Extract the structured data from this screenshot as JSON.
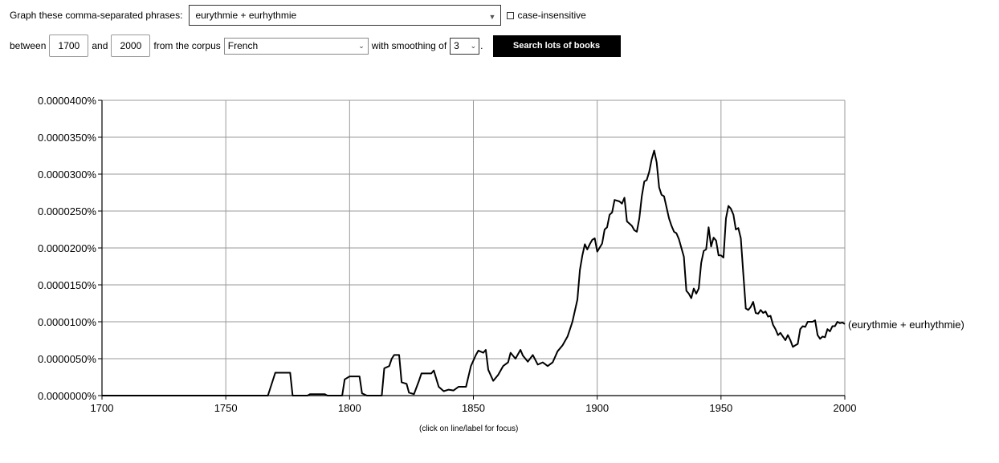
{
  "controls": {
    "phrases_label": "Graph these comma-separated phrases:",
    "phrases_value": "eurythmie + eurhythmie",
    "case_insensitive_label": "case-insensitive",
    "between_label": "between",
    "start_year": "1700",
    "and_label": "and",
    "end_year": "2000",
    "corpus_label": "from the corpus",
    "corpus_value": "French",
    "smoothing_label": "with smoothing of",
    "smoothing_value": "3",
    "period": ".",
    "search_button": "Search lots of books"
  },
  "hint": "(click on line/label for focus)",
  "chart_data": {
    "type": "line",
    "xlim": [
      1700,
      2000
    ],
    "ylim": [
      0,
      4e-05
    ],
    "x_ticks": [
      1700,
      1750,
      1800,
      1850,
      1900,
      1950,
      2000
    ],
    "y_ticks": [
      "0.0000000%",
      "0.0000050%",
      "0.0000100%",
      "0.0000150%",
      "0.0000200%",
      "0.0000250%",
      "0.0000300%",
      "0.0000350%",
      "0.0000400%"
    ],
    "grid": true,
    "line_color": "#000000",
    "series": [
      {
        "name": "(eurythmie + eurhythmie)",
        "points": [
          [
            1700,
            0
          ],
          [
            1767,
            0
          ],
          [
            1770,
            3.1e-06
          ],
          [
            1776,
            3.1e-06
          ],
          [
            1777,
            0
          ],
          [
            1783,
            0
          ],
          [
            1784,
            2e-07
          ],
          [
            1790,
            2e-07
          ],
          [
            1791,
            0
          ],
          [
            1797,
            0
          ],
          [
            1798,
            2.2e-06
          ],
          [
            1800,
            2.6e-06
          ],
          [
            1804,
            2.6e-06
          ],
          [
            1805,
            3e-07
          ],
          [
            1807,
            0
          ],
          [
            1813,
            0
          ],
          [
            1814,
            3.7e-06
          ],
          [
            1816,
            4e-06
          ],
          [
            1817,
            5e-06
          ],
          [
            1818,
            5.5e-06
          ],
          [
            1820,
            5.5e-06
          ],
          [
            1821,
            1.8e-06
          ],
          [
            1823,
            1.6e-06
          ],
          [
            1824,
            4e-07
          ],
          [
            1826,
            2e-07
          ],
          [
            1828,
            2e-06
          ],
          [
            1829,
            3e-06
          ],
          [
            1831,
            3e-06
          ],
          [
            1833,
            3e-06
          ],
          [
            1834,
            3.4e-06
          ],
          [
            1836,
            1.2e-06
          ],
          [
            1838,
            6e-07
          ],
          [
            1840,
            8e-07
          ],
          [
            1842,
            7e-07
          ],
          [
            1844,
            1.2e-06
          ],
          [
            1847,
            1.2e-06
          ],
          [
            1849,
            4e-06
          ],
          [
            1851,
            5.5e-06
          ],
          [
            1852,
            6.1e-06
          ],
          [
            1854,
            5.8e-06
          ],
          [
            1855,
            6.2e-06
          ],
          [
            1856,
            3.5e-06
          ],
          [
            1858,
            2e-06
          ],
          [
            1860,
            2.8e-06
          ],
          [
            1862,
            4e-06
          ],
          [
            1864,
            4.5e-06
          ],
          [
            1865,
            5.8e-06
          ],
          [
            1867,
            5e-06
          ],
          [
            1869,
            6.2e-06
          ],
          [
            1870,
            5.4e-06
          ],
          [
            1872,
            4.6e-06
          ],
          [
            1874,
            5.5e-06
          ],
          [
            1876,
            4.2e-06
          ],
          [
            1878,
            4.5e-06
          ],
          [
            1880,
            4e-06
          ],
          [
            1882,
            4.5e-06
          ],
          [
            1884,
            6e-06
          ],
          [
            1886,
            6.8e-06
          ],
          [
            1888,
            8e-06
          ],
          [
            1889,
            9e-06
          ],
          [
            1890,
            1e-05
          ],
          [
            1892,
            1.3e-05
          ],
          [
            1893,
            1.7e-05
          ],
          [
            1894,
            1.9e-05
          ],
          [
            1895,
            2.05e-05
          ],
          [
            1896,
            1.98e-05
          ],
          [
            1897,
            2.05e-05
          ],
          [
            1898,
            2.11e-05
          ],
          [
            1899,
            2.13e-05
          ],
          [
            1900,
            1.95e-05
          ],
          [
            1902,
            2.06e-05
          ],
          [
            1903,
            2.25e-05
          ],
          [
            1904,
            2.28e-05
          ],
          [
            1905,
            2.45e-05
          ],
          [
            1906,
            2.48e-05
          ],
          [
            1907,
            2.65e-05
          ],
          [
            1909,
            2.63e-05
          ],
          [
            1910,
            2.6e-05
          ],
          [
            1911,
            2.68e-05
          ],
          [
            1912,
            2.36e-05
          ],
          [
            1914,
            2.3e-05
          ],
          [
            1915,
            2.24e-05
          ],
          [
            1916,
            2.22e-05
          ],
          [
            1917,
            2.4e-05
          ],
          [
            1918,
            2.7e-05
          ],
          [
            1919,
            2.9e-05
          ],
          [
            1920,
            2.92e-05
          ],
          [
            1921,
            3.03e-05
          ],
          [
            1922,
            3.2e-05
          ],
          [
            1923,
            3.32e-05
          ],
          [
            1924,
            3.16e-05
          ],
          [
            1925,
            2.82e-05
          ],
          [
            1926,
            2.72e-05
          ],
          [
            1927,
            2.7e-05
          ],
          [
            1928,
            2.55e-05
          ],
          [
            1929,
            2.4e-05
          ],
          [
            1930,
            2.3e-05
          ],
          [
            1931,
            2.22e-05
          ],
          [
            1932,
            2.2e-05
          ],
          [
            1933,
            2.12e-05
          ],
          [
            1934,
            2e-05
          ],
          [
            1935,
            1.88e-05
          ],
          [
            1936,
            1.42e-05
          ],
          [
            1937,
            1.38e-05
          ],
          [
            1938,
            1.32e-05
          ],
          [
            1939,
            1.45e-05
          ],
          [
            1940,
            1.38e-05
          ],
          [
            1941,
            1.45e-05
          ],
          [
            1942,
            1.8e-05
          ],
          [
            1943,
            1.96e-05
          ],
          [
            1944,
            1.98e-05
          ],
          [
            1945,
            2.28e-05
          ],
          [
            1946,
            2.02e-05
          ],
          [
            1947,
            2.14e-05
          ],
          [
            1948,
            2.1e-05
          ],
          [
            1949,
            1.9e-05
          ],
          [
            1950,
            1.9e-05
          ],
          [
            1951,
            1.87e-05
          ],
          [
            1952,
            2.4e-05
          ],
          [
            1953,
            2.57e-05
          ],
          [
            1954,
            2.53e-05
          ],
          [
            1955,
            2.45e-05
          ],
          [
            1956,
            2.25e-05
          ],
          [
            1957,
            2.27e-05
          ],
          [
            1958,
            2.13e-05
          ],
          [
            1959,
            1.65e-05
          ],
          [
            1960,
            1.18e-05
          ],
          [
            1961,
            1.16e-05
          ],
          [
            1962,
            1.2e-05
          ],
          [
            1963,
            1.27e-05
          ],
          [
            1964,
            1.12e-05
          ],
          [
            1965,
            1.11e-05
          ],
          [
            1966,
            1.16e-05
          ],
          [
            1967,
            1.12e-05
          ],
          [
            1968,
            1.14e-05
          ],
          [
            1969,
            1.07e-05
          ],
          [
            1970,
            1.08e-05
          ],
          [
            1971,
            9.6e-06
          ],
          [
            1972,
            9e-06
          ],
          [
            1973,
            8.2e-06
          ],
          [
            1974,
            8.5e-06
          ],
          [
            1975,
            8e-06
          ],
          [
            1976,
            7.5e-06
          ],
          [
            1977,
            8.2e-06
          ],
          [
            1978,
            7.5e-06
          ],
          [
            1979,
            6.6e-06
          ],
          [
            1980,
            6.8e-06
          ],
          [
            1981,
            7e-06
          ],
          [
            1982,
            9e-06
          ],
          [
            1983,
            9.4e-06
          ],
          [
            1984,
            9.3e-06
          ],
          [
            1985,
            1e-05
          ],
          [
            1986,
            1e-05
          ],
          [
            1987,
            1e-05
          ],
          [
            1988,
            1.02e-05
          ],
          [
            1989,
            8.2e-06
          ],
          [
            1990,
            7.7e-06
          ],
          [
            1991,
            8e-06
          ],
          [
            1992,
            7.9e-06
          ],
          [
            1993,
            9e-06
          ],
          [
            1994,
            8.7e-06
          ],
          [
            1995,
            9.4e-06
          ],
          [
            1996,
            9.4e-06
          ],
          [
            1997,
            1e-05
          ],
          [
            1998,
            9.8e-06
          ],
          [
            1999,
            9.9e-06
          ],
          [
            2000,
            9.7e-06
          ]
        ]
      }
    ]
  }
}
